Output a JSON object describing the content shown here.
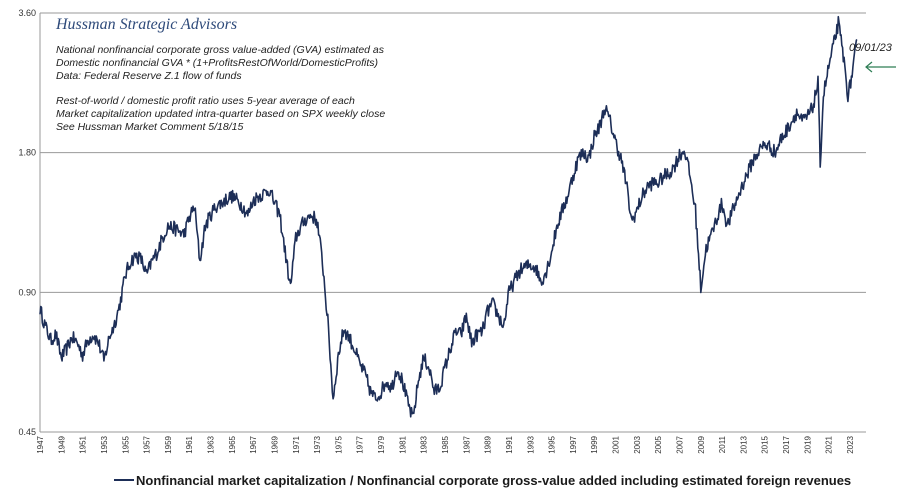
{
  "brand": "Hussman Strategic Advisors",
  "notes": [
    "National nonfinancial corporate gross value-added (GVA) estimated as",
    "Domestic nonfinancial GVA * (1+ProfitsRestOfWorld/DomesticProfits)",
    "Data: Federal Reserve Z.1 flow of funds",
    "",
    "Rest-of-world / domestic profit ratio uses 5-year average of each",
    "Market capitalization updated intra-quarter based on SPX weekly close",
    "See Hussman Market Comment 5/18/15"
  ],
  "latest_label": "09/01/23",
  "colors": {
    "series": "#1d2e57",
    "arrow": "#2e7d55",
    "grid": "#9a9a9a"
  },
  "chart_data": {
    "type": "line",
    "y_scale": "log",
    "ylim": [
      0.45,
      3.6
    ],
    "y_ticks": [
      "3.60",
      "1.80",
      "0.90",
      "0.45"
    ],
    "y_tick_values": [
      3.6,
      1.8,
      0.9,
      0.45
    ],
    "xlim": [
      1947,
      2024.5
    ],
    "x_ticks": [
      "1947",
      "1949",
      "1951",
      "1953",
      "1955",
      "1957",
      "1959",
      "1961",
      "1963",
      "1965",
      "1967",
      "1969",
      "1971",
      "1973",
      "1975",
      "1977",
      "1979",
      "1981",
      "1983",
      "1985",
      "1987",
      "1989",
      "1991",
      "1993",
      "1995",
      "1997",
      "1999",
      "2001",
      "2003",
      "2005",
      "2007",
      "2009",
      "2011",
      "2013",
      "2015",
      "2017",
      "2019",
      "2021",
      "2023"
    ],
    "grid": true,
    "legend_position": "bottom",
    "series": [
      {
        "name": "Nonfinancial market capitalization / Nonfinancial corporate gross-value added including estimated foreign revenues",
        "x": [
          1947.0,
          1947.5,
          1948.0,
          1948.5,
          1949.0,
          1949.5,
          1950.0,
          1950.5,
          1951.0,
          1951.5,
          1952.0,
          1952.5,
          1953.0,
          1953.5,
          1954.0,
          1954.5,
          1955.0,
          1955.5,
          1956.0,
          1956.5,
          1957.0,
          1957.5,
          1958.0,
          1958.5,
          1959.0,
          1959.5,
          1960.0,
          1960.5,
          1961.0,
          1961.5,
          1962.0,
          1962.5,
          1963.0,
          1963.5,
          1964.0,
          1964.5,
          1965.0,
          1965.5,
          1966.0,
          1966.5,
          1967.0,
          1967.5,
          1968.0,
          1968.5,
          1969.0,
          1969.5,
          1970.0,
          1970.5,
          1971.0,
          1971.5,
          1972.0,
          1972.5,
          1973.0,
          1973.5,
          1974.0,
          1974.5,
          1975.0,
          1975.5,
          1976.0,
          1976.5,
          1977.0,
          1977.5,
          1978.0,
          1978.5,
          1979.0,
          1979.5,
          1980.0,
          1980.5,
          1981.0,
          1981.5,
          1982.0,
          1982.5,
          1983.0,
          1983.5,
          1984.0,
          1984.5,
          1985.0,
          1985.5,
          1986.0,
          1986.5,
          1987.0,
          1987.5,
          1988.0,
          1988.5,
          1989.0,
          1989.5,
          1990.0,
          1990.5,
          1991.0,
          1991.5,
          1992.0,
          1992.5,
          1993.0,
          1993.5,
          1994.0,
          1994.5,
          1995.0,
          1995.5,
          1996.0,
          1996.5,
          1997.0,
          1997.5,
          1998.0,
          1998.5,
          1999.0,
          1999.5,
          2000.0,
          2000.5,
          2001.0,
          2001.5,
          2002.0,
          2002.5,
          2003.0,
          2003.5,
          2004.0,
          2004.5,
          2005.0,
          2005.5,
          2006.0,
          2006.5,
          2007.0,
          2007.5,
          2008.0,
          2008.5,
          2009.0,
          2009.5,
          2010.0,
          2010.5,
          2011.0,
          2011.5,
          2012.0,
          2012.5,
          2013.0,
          2013.5,
          2014.0,
          2014.5,
          2015.0,
          2015.5,
          2016.0,
          2016.5,
          2017.0,
          2017.5,
          2018.0,
          2018.5,
          2019.0,
          2019.5,
          2020.0,
          2020.2,
          2020.5,
          2021.0,
          2021.5,
          2021.9,
          2022.3,
          2022.8,
          2023.0,
          2023.4,
          2023.67
        ],
        "values": [
          0.83,
          0.76,
          0.71,
          0.73,
          0.65,
          0.68,
          0.72,
          0.7,
          0.66,
          0.71,
          0.73,
          0.7,
          0.64,
          0.72,
          0.77,
          0.85,
          0.98,
          1.05,
          1.08,
          1.06,
          0.98,
          1.05,
          1.1,
          1.18,
          1.25,
          1.24,
          1.22,
          1.2,
          1.3,
          1.38,
          1.05,
          1.25,
          1.32,
          1.38,
          1.4,
          1.43,
          1.45,
          1.42,
          1.38,
          1.32,
          1.42,
          1.45,
          1.47,
          1.5,
          1.4,
          1.32,
          1.1,
          0.92,
          1.18,
          1.25,
          1.3,
          1.32,
          1.28,
          1.05,
          0.78,
          0.53,
          0.66,
          0.75,
          0.72,
          0.68,
          0.63,
          0.6,
          0.55,
          0.53,
          0.55,
          0.58,
          0.56,
          0.62,
          0.58,
          0.52,
          0.48,
          0.58,
          0.65,
          0.62,
          0.55,
          0.56,
          0.62,
          0.68,
          0.74,
          0.73,
          0.8,
          0.7,
          0.73,
          0.74,
          0.82,
          0.85,
          0.8,
          0.76,
          0.9,
          0.95,
          1.0,
          1.02,
          1.03,
          1.02,
          0.95,
          1.0,
          1.1,
          1.25,
          1.35,
          1.45,
          1.6,
          1.75,
          1.8,
          1.75,
          1.95,
          2.05,
          2.25,
          2.1,
          1.9,
          1.75,
          1.55,
          1.28,
          1.35,
          1.45,
          1.52,
          1.55,
          1.55,
          1.6,
          1.62,
          1.68,
          1.78,
          1.82,
          1.6,
          1.35,
          0.92,
          1.12,
          1.2,
          1.3,
          1.4,
          1.25,
          1.35,
          1.45,
          1.55,
          1.65,
          1.75,
          1.82,
          1.88,
          1.85,
          1.8,
          1.92,
          2.0,
          2.1,
          2.2,
          2.1,
          2.15,
          2.25,
          2.55,
          1.7,
          2.4,
          2.75,
          3.1,
          3.42,
          3.0,
          2.4,
          2.5,
          2.85,
          3.15
        ]
      }
    ]
  }
}
